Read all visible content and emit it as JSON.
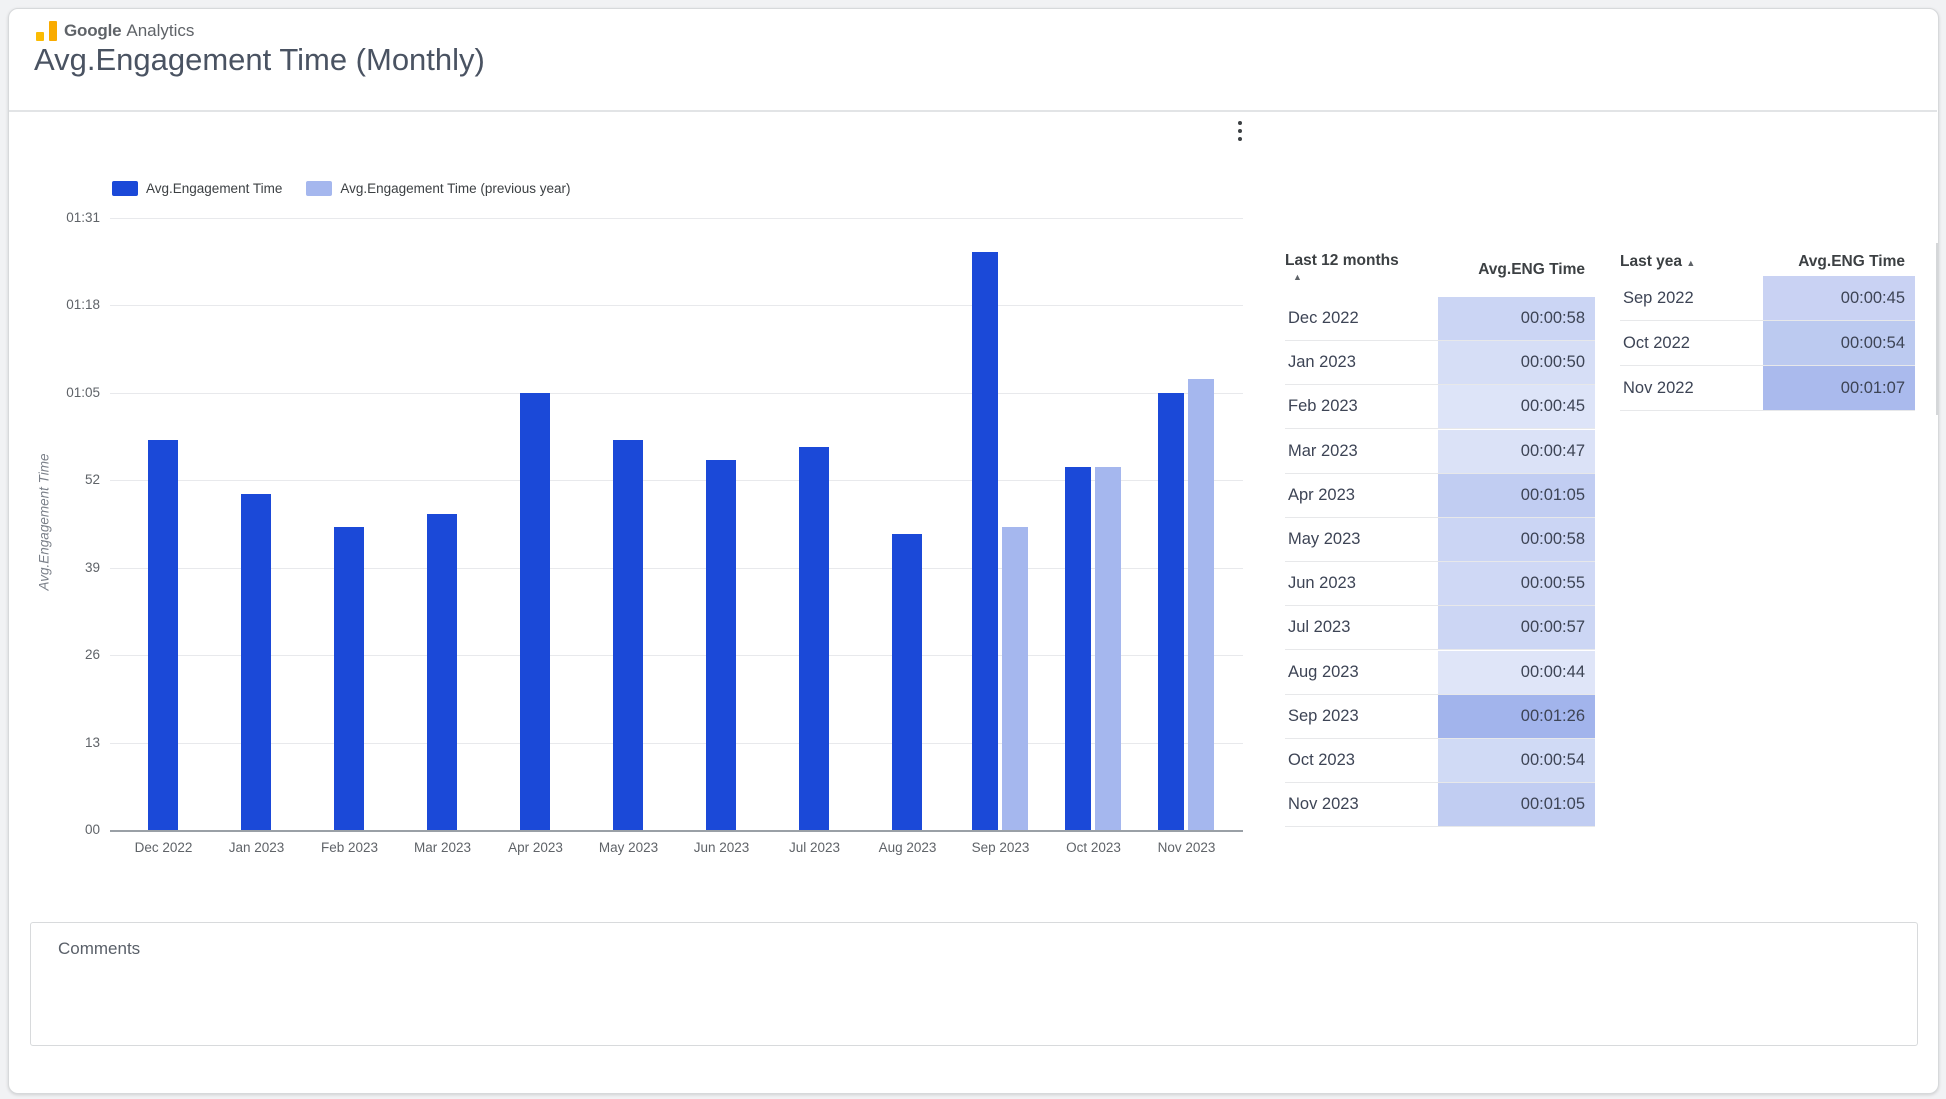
{
  "header": {
    "logo_brand": "Google",
    "logo_product": "Analytics",
    "title": "Avg.Engagement Time (Monthly)"
  },
  "toolbar": {
    "kebab_icon": "more-options"
  },
  "colors": {
    "series_current": "#1b49d8",
    "series_previous": "#a5b7ee",
    "page_background": "#f1f2f4",
    "gridline": "#e8e9ec",
    "axis_baseline": "#9aa0a6"
  },
  "chart_data": {
    "type": "bar",
    "title": "Avg.Engagement Time (Monthly)",
    "ylabel": "Avg.Engagement Time",
    "categories": [
      "Dec 2022",
      "Jan 2023",
      "Feb 2023",
      "Mar 2023",
      "Apr 2023",
      "May 2023",
      "Jun 2023",
      "Jul 2023",
      "Aug 2023",
      "Sep 2023",
      "Oct 2023",
      "Nov 2023"
    ],
    "series": [
      {
        "name": "Avg.Engagement Time",
        "color": "#1b49d8",
        "values_seconds": [
          58,
          50,
          45,
          47,
          65,
          58,
          55,
          57,
          44,
          86,
          54,
          65
        ],
        "values_formatted": [
          "00:00:58",
          "00:00:50",
          "00:00:45",
          "00:00:47",
          "00:01:05",
          "00:00:58",
          "00:00:55",
          "00:00:57",
          "00:00:44",
          "00:01:26",
          "00:00:54",
          "00:01:05"
        ]
      },
      {
        "name": "Avg.Engagement Time (previous year)",
        "color": "#a5b7ee",
        "values_seconds": [
          null,
          null,
          null,
          null,
          null,
          null,
          null,
          null,
          null,
          45,
          54,
          67
        ],
        "values_formatted": [
          null,
          null,
          null,
          null,
          null,
          null,
          null,
          null,
          null,
          "00:00:45",
          "00:00:54",
          "00:01:07"
        ]
      }
    ],
    "yticks": [
      "00",
      "13",
      "26",
      "39",
      "52",
      "01:05",
      "01:18",
      "01:31"
    ],
    "ylim_seconds": [
      0,
      91
    ],
    "grid": true,
    "legend_position": "top-left"
  },
  "tables": [
    {
      "name": "last-12-months",
      "col1": "Last 12 months",
      "col2": "Avg.ENG Time",
      "sort_icon": "▲",
      "sort_icon_position": "below",
      "rows": [
        {
          "label": "Dec 2022",
          "value": "00:00:58",
          "bg": "#cbd5f4"
        },
        {
          "label": "Jan 2023",
          "value": "00:00:50",
          "bg": "#d6def6"
        },
        {
          "label": "Feb 2023",
          "value": "00:00:45",
          "bg": "#dde4f8"
        },
        {
          "label": "Mar 2023",
          "value": "00:00:47",
          "bg": "#dbe2f7"
        },
        {
          "label": "Apr 2023",
          "value": "00:01:05",
          "bg": "#c1cdf2"
        },
        {
          "label": "May 2023",
          "value": "00:00:58",
          "bg": "#cbd5f4"
        },
        {
          "label": "Jun 2023",
          "value": "00:00:55",
          "bg": "#cfd8f5"
        },
        {
          "label": "Jul 2023",
          "value": "00:00:57",
          "bg": "#ccd6f4"
        },
        {
          "label": "Aug 2023",
          "value": "00:00:44",
          "bg": "#dfe5f8"
        },
        {
          "label": "Sep 2023",
          "value": "00:01:26",
          "bg": "#a2b4ec"
        },
        {
          "label": "Oct 2023",
          "value": "00:00:54",
          "bg": "#d0daf5"
        },
        {
          "label": "Nov 2023",
          "value": "00:01:05",
          "bg": "#c1cdf2"
        }
      ]
    },
    {
      "name": "last-year",
      "col1": "Last yea",
      "col2": "Avg.ENG Time",
      "sort_icon": "▲",
      "sort_icon_position": "inline",
      "rows": [
        {
          "label": "Sep 2022",
          "value": "00:00:45",
          "bg": "#c9d2f3"
        },
        {
          "label": "Oct 2022",
          "value": "00:00:54",
          "bg": "#bccaf0"
        },
        {
          "label": "Nov 2022",
          "value": "00:01:07",
          "bg": "#aabaed"
        }
      ]
    }
  ],
  "comments": {
    "label": "Comments"
  }
}
